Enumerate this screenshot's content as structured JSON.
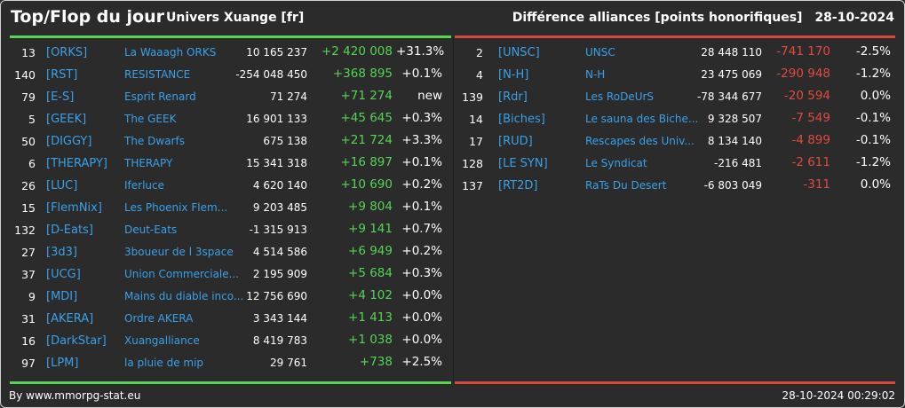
{
  "header": {
    "title": "Top/Flop du jour",
    "subtitle": "Univers Xuange [fr]",
    "metric": "Différence alliances [points honorifiques]",
    "date": "28-10-2024"
  },
  "colors": {
    "accent_tag": "#3aa0e8",
    "gain": "#55d455",
    "loss": "#e04a42",
    "background": "#2b2b2b"
  },
  "top": [
    {
      "rank": "13",
      "tag": "[ORKS]",
      "name": "La Waaagh ORKS",
      "total": "10 165 237",
      "diff": "+2 420 008",
      "pct": "+31.3%"
    },
    {
      "rank": "140",
      "tag": "[RST]",
      "name": "RESISTANCE",
      "total": "-254 048 450",
      "diff": "+368 895",
      "pct": "+0.1%"
    },
    {
      "rank": "79",
      "tag": "[E-S]",
      "name": "Esprit Renard",
      "total": "71 274",
      "diff": "+71 274",
      "pct": "new"
    },
    {
      "rank": "5",
      "tag": "[GEEK]",
      "name": "The GEEK",
      "total": "16 901 133",
      "diff": "+45 645",
      "pct": "+0.3%"
    },
    {
      "rank": "50",
      "tag": "[DIGGY]",
      "name": "The Dwarfs",
      "total": "675 138",
      "diff": "+21 724",
      "pct": "+3.3%"
    },
    {
      "rank": "6",
      "tag": "[THERAPY]",
      "name": "THERAPY",
      "total": "15 341 318",
      "diff": "+16 897",
      "pct": "+0.1%"
    },
    {
      "rank": "26",
      "tag": "[LUC]",
      "name": "Iferluce",
      "total": "4 620 140",
      "diff": "+10 690",
      "pct": "+0.2%"
    },
    {
      "rank": "15",
      "tag": "[FlemNix]",
      "name": "Les Phoenix Flem...",
      "total": "9 203 485",
      "diff": "+9 804",
      "pct": "+0.1%"
    },
    {
      "rank": "132",
      "tag": "[D-Eats]",
      "name": "Deut-Eats",
      "total": "-1 315 913",
      "diff": "+9 141",
      "pct": "+0.7%"
    },
    {
      "rank": "27",
      "tag": "[3d3]",
      "name": "3boueur de l 3space",
      "total": "4 514 586",
      "diff": "+6 949",
      "pct": "+0.2%"
    },
    {
      "rank": "37",
      "tag": "[UCG]",
      "name": "Union Commerciale...",
      "total": "2 195 909",
      "diff": "+5 684",
      "pct": "+0.3%"
    },
    {
      "rank": "9",
      "tag": "[MDI]",
      "name": "Mains du diable inco...",
      "total": "12 756 690",
      "diff": "+4 102",
      "pct": "+0.0%"
    },
    {
      "rank": "31",
      "tag": "[AKERA]",
      "name": "Ordre AKERA",
      "total": "3 343 144",
      "diff": "+1 413",
      "pct": "+0.0%"
    },
    {
      "rank": "16",
      "tag": "[DarkStar]",
      "name": "Xuangalliance",
      "total": "8 419 783",
      "diff": "+1 038",
      "pct": "+0.0%"
    },
    {
      "rank": "97",
      "tag": "[LPM]",
      "name": "la pluie de mip",
      "total": "29 761",
      "diff": "+738",
      "pct": "+2.5%"
    }
  ],
  "flop": [
    {
      "rank": "2",
      "tag": "[UNSC]",
      "name": "UNSC",
      "total": "28 448 110",
      "diff": "-741 170",
      "pct": "-2.5%"
    },
    {
      "rank": "4",
      "tag": "[N-H]",
      "name": "N-H",
      "total": "23 475 069",
      "diff": "-290 948",
      "pct": "-1.2%"
    },
    {
      "rank": "139",
      "tag": "[Rdr]",
      "name": "Les RoDeUrS",
      "total": "-78 344 677",
      "diff": "-20 594",
      "pct": "0.0%"
    },
    {
      "rank": "14",
      "tag": "[Biches]",
      "name": "Le sauna des Biche...",
      "total": "9 328 507",
      "diff": "-7 549",
      "pct": "-0.1%"
    },
    {
      "rank": "17",
      "tag": "[RUD]",
      "name": "Rescapes des Univ...",
      "total": "8 134 140",
      "diff": "-4 899",
      "pct": "-0.1%"
    },
    {
      "rank": "128",
      "tag": "[LE SYN]",
      "name": "Le Syndicat",
      "total": "-216 481",
      "diff": "-2 611",
      "pct": "-1.2%"
    },
    {
      "rank": "137",
      "tag": "[RT2D]",
      "name": "RaTs Du Desert",
      "total": "-6 803 049",
      "diff": "-311",
      "pct": "0.0%"
    }
  ],
  "footer": {
    "credit": "By www.mmorpg-stat.eu",
    "timestamp": "28-10-2024 00:29:02"
  }
}
